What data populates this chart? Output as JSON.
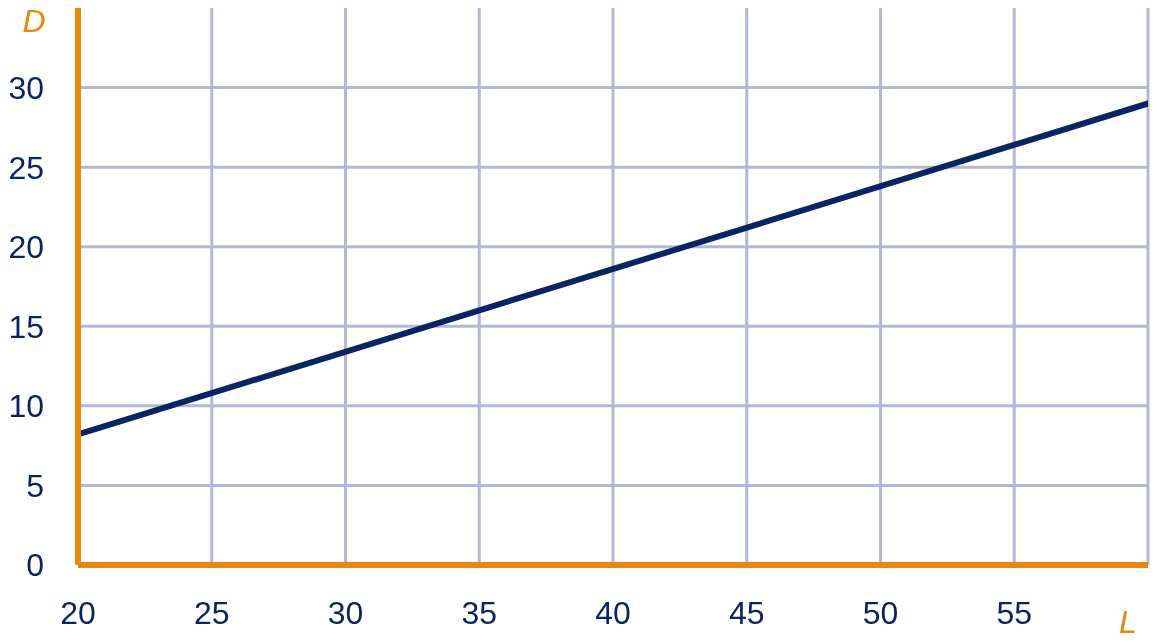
{
  "chart_data": {
    "type": "line",
    "xlabel": "L",
    "ylabel": "D",
    "x": [
      20,
      60
    ],
    "series": [
      {
        "color": "#0a2461",
        "values": [
          8.2,
          29.0
        ]
      }
    ],
    "xlim": [
      20,
      60
    ],
    "xticks": [
      20,
      25,
      30,
      35,
      40,
      45,
      50,
      55,
      {
        "value": 60,
        "label": null
      }
    ],
    "ylim": [
      0,
      35
    ],
    "yticks": [
      0,
      5,
      10,
      15,
      20,
      25,
      30
    ],
    "grid": true,
    "marker": "none",
    "line_style": "solid",
    "legend": false
  }
}
